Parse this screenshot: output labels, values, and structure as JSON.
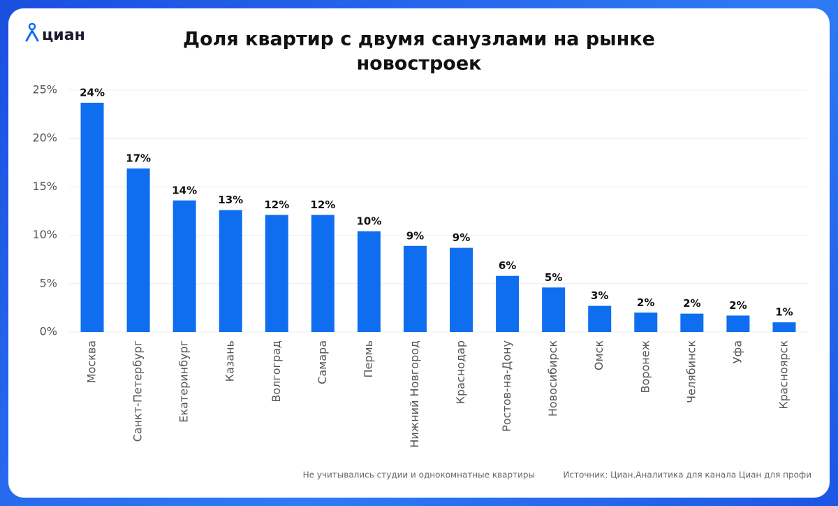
{
  "logo": "циан",
  "chart_data": {
    "type": "bar",
    "title": [
      "Доля квартир с двумя санузлами на рынке",
      "новостроек"
    ],
    "categories": [
      "Москва",
      "Санкт-Петербург",
      "Екатеринбург",
      "Казань",
      "Волгоград",
      "Самара",
      "Пермь",
      "Нижний Новгород",
      "Краснодар",
      "Ростов-на-Дону",
      "Новосибирск",
      "Омск",
      "Воронеж",
      "Челябинск",
      "Уфа",
      "Красноярск"
    ],
    "values": [
      23.7,
      16.9,
      13.6,
      12.6,
      12.1,
      12.1,
      10.4,
      8.9,
      8.7,
      5.8,
      4.6,
      2.7,
      2.0,
      1.9,
      1.7,
      1.0
    ],
    "value_labels": [
      "24%",
      "17%",
      "14%",
      "13%",
      "12%",
      "12%",
      "10%",
      "9%",
      "9%",
      "6%",
      "5%",
      "3%",
      "2%",
      "2%",
      "2%",
      "1%"
    ],
    "color": "#0f6ef0",
    "ylim": [
      0,
      25
    ],
    "yticks": [
      {
        "value": 0,
        "label": "0%"
      },
      {
        "value": 5,
        "label": "5%"
      },
      {
        "value": 10,
        "label": "10%"
      },
      {
        "value": 15,
        "label": "15%"
      },
      {
        "value": 20,
        "label": "20%"
      },
      {
        "value": 25,
        "label": "25%"
      }
    ],
    "grid": true,
    "note": "Не учитывались студии и однокомнатные квартиры",
    "source": "Источник: Циан.Аналитика для канала Циан для профи"
  }
}
